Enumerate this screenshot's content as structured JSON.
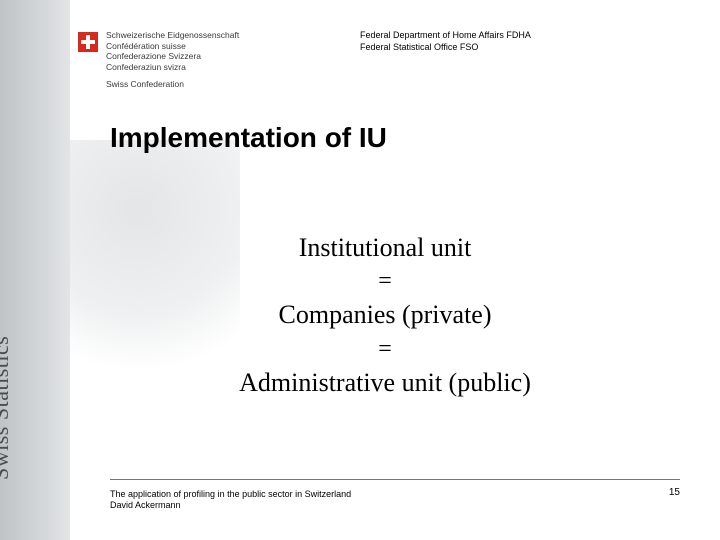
{
  "sidebar": {
    "brand": "Swiss Statistics"
  },
  "logo": {
    "line1": "Schweizerische Eidgenossenschaft",
    "line2": "Confédération suisse",
    "line3": "Confederazione Svizzera",
    "line4": "Confederaziun svizra",
    "line5": "Swiss Confederation"
  },
  "dept": {
    "line1": "Federal Department of Home Affairs FDHA",
    "line2": "Federal Statistical Office FSO"
  },
  "title": "Implementation of IU",
  "content": {
    "line1": "Institutional unit",
    "eq1": "=",
    "line2": "Companies (private)",
    "eq2": "=",
    "line3": "Administrative unit (public)"
  },
  "footer": {
    "line1": "The application of profiling in the public sector in Switzerland",
    "line2": "David Ackermann"
  },
  "page": "15",
  "colors": {
    "swiss_red": "#d52b1e",
    "text": "#000000",
    "sidebar_text": "#4a4c4d",
    "background": "#ffffff"
  }
}
